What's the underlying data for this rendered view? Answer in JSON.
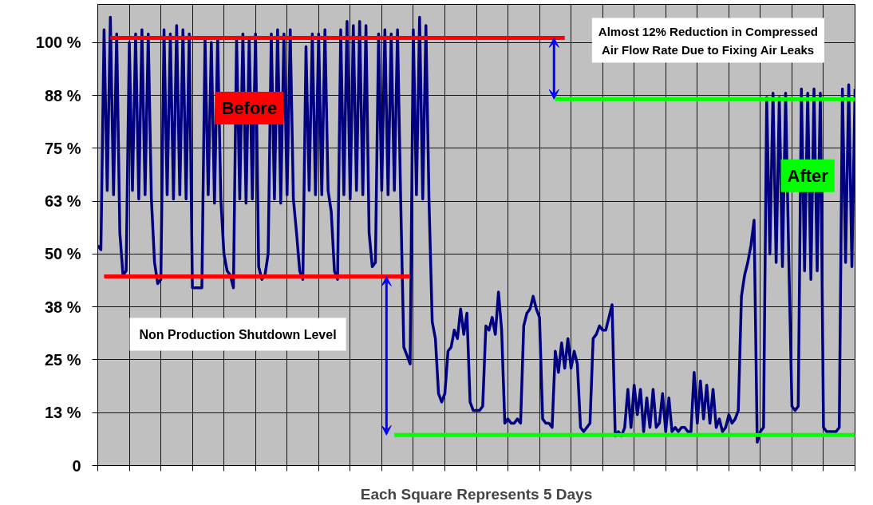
{
  "chart_data": {
    "type": "line",
    "xlabel": "Each Square Represents 5 Days",
    "categories": [
      null,
      null,
      null,
      null,
      null,
      null,
      null,
      null,
      null,
      null,
      null,
      null,
      null,
      null,
      null,
      null,
      null,
      null,
      null,
      null,
      null,
      null,
      null,
      null,
      null,
      null,
      null,
      null,
      null,
      null,
      null,
      null,
      null,
      null,
      null,
      null,
      null,
      null,
      null,
      null,
      null,
      null,
      null,
      null,
      null,
      null,
      null,
      null,
      null,
      null,
      null,
      null,
      null,
      null,
      null,
      null,
      null,
      null,
      null,
      null,
      null,
      null,
      null,
      null,
      null,
      null,
      null,
      null,
      null,
      null,
      null,
      null,
      null,
      null,
      null,
      null,
      null,
      null,
      null,
      null,
      null,
      null,
      null,
      null,
      null,
      null,
      null,
      null,
      null,
      null,
      null,
      null,
      null,
      null,
      null,
      null,
      null,
      null,
      null,
      null,
      null,
      null,
      null,
      null,
      null,
      null,
      null,
      null,
      null,
      null,
      null,
      null,
      null,
      null,
      null,
      null,
      null,
      null,
      null,
      null,
      null,
      null,
      null,
      null,
      null,
      null,
      null,
      null,
      null,
      null,
      null,
      null,
      null,
      null,
      null,
      null,
      null,
      null,
      null,
      null,
      null,
      null,
      null,
      null,
      null,
      null,
      null,
      null,
      null,
      null,
      null,
      null,
      null,
      null,
      null,
      null,
      null,
      null,
      null,
      null,
      null,
      null,
      null,
      null,
      null,
      null,
      null,
      null,
      null,
      null,
      null,
      null,
      null,
      null,
      null,
      null,
      null,
      null,
      null,
      null,
      null,
      null,
      null,
      null,
      null,
      null,
      null,
      null,
      null,
      null,
      null,
      null,
      null,
      null,
      null,
      null,
      null,
      null,
      null,
      null,
      null,
      null,
      null,
      null,
      null,
      null,
      null,
      null,
      null,
      null,
      null,
      null,
      null,
      null,
      null,
      null,
      null,
      null,
      null,
      null,
      null,
      null,
      null,
      null,
      null,
      null,
      null,
      null,
      null,
      null,
      null,
      null,
      null,
      null,
      null,
      null,
      null,
      null,
      null,
      null,
      null
    ],
    "ylim": [
      0,
      109
    ],
    "yticks": [
      {
        "value": 0,
        "label": "0"
      },
      {
        "value": 12.5,
        "label": "13 %"
      },
      {
        "value": 25,
        "label": "25 %"
      },
      {
        "value": 37.5,
        "label": "38 %"
      },
      {
        "value": 50,
        "label": "50 %"
      },
      {
        "value": 62.5,
        "label": "63 %"
      },
      {
        "value": 75,
        "label": "75 %"
      },
      {
        "value": 87.5,
        "label": "88 %"
      },
      {
        "value": 100,
        "label": "100 %"
      }
    ],
    "grid": true,
    "annotations": [
      "Before",
      "After",
      "Almost 12% Reduction in Compressed Air Flow Rate Due to Fixing Air Leaks",
      "Non Production Shutdown Level"
    ],
    "series": [
      {
        "color": "#000080",
        "values": [
          52,
          51,
          103,
          65,
          106,
          64,
          102,
          55,
          45,
          46,
          100,
          65,
          102,
          63,
          103,
          64,
          102,
          63,
          48,
          43,
          44,
          103,
          64,
          102,
          63,
          104,
          64,
          103,
          63,
          102,
          42,
          42,
          42,
          42,
          101,
          64,
          100,
          62,
          101,
          63,
          50,
          46,
          45,
          42,
          101,
          63,
          102,
          62,
          101,
          63,
          102,
          47,
          44,
          45,
          50,
          102,
          63,
          103,
          62,
          102,
          64,
          103,
          63,
          55,
          46,
          44,
          99,
          65,
          102,
          64,
          102,
          64,
          103,
          65,
          60,
          46,
          44,
          103,
          64,
          105,
          63,
          104,
          65,
          105,
          64,
          104,
          55,
          47,
          48,
          102,
          65,
          103,
          64,
          102,
          65,
          103,
          63,
          28,
          26,
          24,
          103,
          64,
          106,
          63,
          104,
          62,
          34,
          30,
          17,
          15,
          17,
          27,
          28,
          32,
          30,
          37,
          31,
          36,
          15,
          13,
          13,
          13,
          14,
          33,
          32,
          35,
          31,
          41,
          32,
          10,
          11,
          10,
          10,
          11,
          10,
          33,
          36,
          37,
          40,
          37,
          35,
          11,
          10,
          10,
          9,
          27,
          22,
          29,
          23,
          30,
          23,
          27,
          24,
          9,
          8,
          9,
          10,
          30,
          31,
          33,
          32,
          32,
          35,
          38,
          7,
          8,
          7,
          9,
          18,
          9,
          19,
          12,
          18,
          8,
          16,
          9,
          18,
          9,
          10,
          17,
          8,
          16,
          8,
          9,
          8,
          9,
          9,
          8,
          8,
          22,
          10,
          20,
          11,
          19,
          10,
          18,
          9,
          11,
          8,
          9,
          12,
          10,
          11,
          13,
          40,
          45,
          48,
          52,
          58,
          5.5,
          8,
          9,
          87,
          50,
          88,
          48,
          87,
          47,
          88,
          49,
          14,
          13,
          14,
          89,
          46,
          88,
          44,
          89,
          46,
          88,
          9,
          8,
          8,
          8,
          8,
          9,
          89,
          48,
          90,
          47,
          89
        ]
      },
      {
        "color": "#ff0000",
        "values": [
          null,
          null,
          null,
          null,
          101.1,
          101.1,
          101.1,
          101.1,
          101.1,
          101.1,
          101.1,
          101.1,
          101.1,
          101.1,
          101.1,
          101.1,
          101.1,
          101.1,
          101.1,
          101.1,
          101.1,
          101.1,
          101.1,
          101.1,
          101.1,
          101.1,
          101.1,
          101.1,
          101.1,
          101.1,
          101.1,
          101.1,
          101.1,
          101.1,
          101.1,
          101.1,
          101.1,
          101.1,
          101.1,
          101.1,
          101.1,
          101.1,
          101.1,
          101.1,
          101.1,
          101.1,
          101.1,
          101.1,
          101.1,
          101.1,
          101.1,
          101.1,
          101.1,
          101.1,
          101.1,
          101.1,
          101.1,
          101.1,
          101.1,
          101.1,
          101.1,
          101.1,
          101.1,
          101.1,
          101.1,
          101.1,
          101.1,
          101.1,
          101.1,
          101.1,
          101.1,
          101.1,
          101.1,
          101.1,
          101.1,
          101.1,
          101.1,
          101.1,
          101.1,
          101.1,
          101.1,
          101.1,
          101.1,
          101.1,
          101.1,
          101.1,
          101.1,
          101.1,
          101.1,
          101.1,
          101.1,
          101.1,
          101.1,
          101.1,
          101.1,
          101.1,
          101.1,
          101.1,
          101.1,
          101.1,
          101.1,
          101.1,
          101.1,
          101.1,
          101.1,
          101.1,
          101.1,
          101.1,
          101.1,
          101.1,
          101.1,
          101.1,
          101.1,
          101.1,
          101.1,
          101.1,
          101.1,
          101.1,
          101.1,
          101.1,
          101.1,
          101.1,
          101.1,
          101.1,
          101.1,
          101.1,
          101.1,
          101.1,
          101.1,
          101.1,
          101.1,
          101.1,
          101.1,
          101.1,
          101.1,
          101.1,
          101.1,
          101.1,
          101.1,
          101.1,
          101.1,
          101.1,
          101.1,
          101.1,
          101.1,
          101.1,
          101.1,
          101.1,
          101.1,
          null,
          null,
          null,
          null,
          null,
          null,
          null,
          null,
          null,
          null,
          null,
          null,
          null,
          null,
          null,
          null,
          null,
          null,
          null,
          null,
          null,
          null,
          null,
          null,
          null,
          null,
          null,
          null,
          null,
          null,
          null,
          null,
          null,
          null,
          null,
          null,
          null,
          null,
          null,
          null,
          null,
          null,
          null,
          null,
          null,
          null,
          null,
          null,
          null,
          null,
          null,
          null,
          null,
          null,
          null,
          null,
          null,
          null,
          null,
          null,
          null,
          null,
          null,
          null,
          null,
          null,
          null,
          null,
          null,
          null,
          null,
          null,
          null,
          null,
          null,
          null,
          null,
          null,
          null,
          null,
          null,
          null,
          null,
          null,
          null,
          null,
          null,
          null,
          null,
          null,
          null,
          null
        ]
      },
      {
        "color": "#00ff00",
        "values": [
          null,
          null,
          null,
          null,
          null,
          null,
          null,
          null,
          null,
          null,
          null,
          null,
          null,
          null,
          null,
          null,
          null,
          null,
          null,
          null,
          null,
          null,
          null,
          null,
          null,
          null,
          null,
          null,
          null,
          null,
          null,
          null,
          null,
          null,
          null,
          null,
          null,
          null,
          null,
          null,
          null,
          null,
          null,
          null,
          null,
          null,
          null,
          null,
          null,
          null,
          null,
          null,
          null,
          null,
          null,
          null,
          null,
          null,
          null,
          null,
          null,
          null,
          null,
          null,
          null,
          null,
          null,
          null,
          null,
          null,
          null,
          null,
          null,
          null,
          null,
          null,
          null,
          null,
          null,
          null,
          null,
          null,
          null,
          null,
          null,
          null,
          null,
          null,
          null,
          null,
          null,
          null,
          null,
          null,
          null,
          null,
          null,
          null,
          null,
          null,
          null,
          null,
          null,
          null,
          null,
          null,
          null,
          null,
          null,
          null,
          null,
          null,
          null,
          null,
          null,
          null,
          null,
          null,
          null,
          null,
          null,
          null,
          null,
          null,
          null,
          null,
          null,
          null,
          null,
          null,
          null,
          null,
          null,
          null,
          null,
          null,
          null,
          null,
          null,
          null,
          null,
          null,
          null,
          null,
          null,
          86.6,
          86.6,
          86.6,
          86.6,
          86.6,
          86.6,
          86.6,
          86.6,
          86.6,
          86.6,
          86.6,
          86.6,
          86.6,
          86.6,
          86.6,
          86.6,
          86.6,
          86.6,
          86.6,
          86.6,
          86.6,
          86.6,
          86.6,
          86.6,
          86.6,
          86.6,
          86.6,
          86.6,
          86.6,
          86.6,
          86.6,
          86.6,
          86.6,
          86.6,
          86.6,
          86.6,
          86.6,
          86.6,
          86.6,
          86.6,
          86.6,
          86.6,
          86.6,
          86.6,
          86.6,
          86.6,
          86.6,
          86.6,
          86.6,
          86.6,
          86.6,
          86.6,
          86.6,
          86.6,
          86.6,
          86.6,
          86.6,
          86.6,
          86.6,
          86.6,
          86.6,
          86.6,
          86.6,
          86.6,
          86.6,
          86.6,
          86.6,
          86.6,
          86.6,
          86.6,
          86.6,
          86.6,
          86.6,
          86.6,
          86.6,
          86.6,
          86.6,
          86.6,
          86.6,
          86.6,
          86.6,
          86.6,
          86.6,
          86.6,
          86.6,
          86.6,
          86.6,
          86.6,
          86.6,
          86.6,
          86.6,
          86.6,
          86.6,
          86.6,
          86.6,
          86.6
        ]
      },
      {
        "color": "#ff0000",
        "values": [
          null,
          null,
          44.7,
          44.7,
          44.7,
          44.7,
          44.7,
          44.7,
          44.7,
          44.7,
          44.7,
          44.7,
          44.7,
          44.7,
          44.7,
          44.7,
          44.7,
          44.7,
          44.7,
          44.7,
          44.7,
          44.7,
          44.7,
          44.7,
          44.7,
          44.7,
          44.7,
          44.7,
          44.7,
          44.7,
          44.7,
          44.7,
          44.7,
          44.7,
          44.7,
          44.7,
          44.7,
          44.7,
          44.7,
          44.7,
          44.7,
          44.7,
          44.7,
          44.7,
          44.7,
          44.7,
          44.7,
          44.7,
          44.7,
          44.7,
          44.7,
          44.7,
          44.7,
          44.7,
          44.7,
          44.7,
          44.7,
          44.7,
          44.7,
          44.7,
          44.7,
          44.7,
          44.7,
          44.7,
          44.7,
          44.7,
          44.7,
          44.7,
          44.7,
          44.7,
          44.7,
          44.7,
          44.7,
          44.7,
          44.7,
          44.7,
          44.7,
          44.7,
          44.7,
          44.7,
          44.7,
          44.7,
          44.7,
          44.7,
          44.7,
          44.7,
          44.7,
          44.7,
          44.7,
          44.7,
          44.7,
          44.7,
          44.7,
          44.7,
          44.7,
          44.7,
          44.7,
          44.7,
          44.7,
          44.7,
          null,
          null,
          null,
          null,
          null,
          null,
          null,
          null,
          null,
          null,
          null,
          null,
          null,
          null,
          null,
          null,
          null,
          null,
          null,
          null,
          null,
          null,
          null,
          null,
          null,
          null,
          null,
          null,
          null,
          null,
          null,
          null,
          null,
          null,
          null,
          null,
          null,
          null,
          null,
          null,
          null,
          null,
          null,
          null,
          null,
          null,
          null,
          null,
          null,
          null,
          null,
          null,
          null,
          null,
          null,
          null,
          null,
          null,
          null,
          null,
          null,
          null,
          null,
          null,
          null,
          null,
          null,
          null,
          null,
          null,
          null,
          null,
          null,
          null,
          null,
          null,
          null,
          null,
          null,
          null,
          null,
          null,
          null,
          null,
          null,
          null,
          null,
          null,
          null,
          null,
          null,
          null,
          null,
          null,
          null,
          null,
          null,
          null,
          null,
          null,
          null,
          null,
          null,
          null,
          null,
          null,
          null,
          null,
          null,
          null,
          null,
          null,
          null,
          null,
          null,
          null,
          null,
          null,
          null,
          null,
          null,
          null,
          null,
          null,
          null,
          null,
          null,
          null,
          null,
          null,
          null,
          null,
          null,
          null,
          null,
          null,
          null,
          null,
          null,
          null,
          null
        ]
      },
      {
        "color": "#00ff00",
        "values": [
          null,
          null,
          null,
          null,
          null,
          null,
          null,
          null,
          null,
          null,
          null,
          null,
          null,
          null,
          null,
          null,
          null,
          null,
          null,
          null,
          null,
          null,
          null,
          null,
          null,
          null,
          null,
          null,
          null,
          null,
          null,
          null,
          null,
          null,
          null,
          null,
          null,
          null,
          null,
          null,
          null,
          null,
          null,
          null,
          null,
          null,
          null,
          null,
          null,
          null,
          null,
          null,
          null,
          null,
          null,
          null,
          null,
          null,
          null,
          null,
          null,
          null,
          null,
          null,
          null,
          null,
          null,
          null,
          null,
          null,
          null,
          null,
          null,
          null,
          null,
          null,
          null,
          null,
          null,
          null,
          null,
          null,
          null,
          null,
          null,
          null,
          null,
          null,
          null,
          null,
          null,
          null,
          null,
          null,
          7.2,
          7.2,
          7.2,
          7.2,
          7.2,
          7.2,
          7.2,
          7.2,
          7.2,
          7.2,
          7.2,
          7.2,
          7.2,
          7.2,
          7.2,
          7.2,
          7.2,
          7.2,
          7.2,
          7.2,
          7.2,
          7.2,
          7.2,
          7.2,
          7.2,
          7.2,
          7.2,
          7.2,
          7.2,
          7.2,
          7.2,
          7.2,
          7.2,
          7.2,
          7.2,
          7.2,
          7.2,
          7.2,
          7.2,
          7.2,
          7.2,
          7.2,
          7.2,
          7.2,
          7.2,
          7.2,
          7.2,
          7.2,
          7.2,
          7.2,
          7.2,
          7.2,
          7.2,
          7.2,
          7.2,
          7.2,
          7.2,
          7.2,
          7.2,
          7.2,
          7.2,
          7.2,
          7.2,
          7.2,
          7.2,
          7.2,
          7.2,
          7.2,
          7.2,
          7.2,
          7.2,
          7.2,
          7.2,
          7.2,
          7.2,
          7.2,
          7.2,
          7.2,
          7.2,
          7.2,
          7.2,
          7.2,
          7.2,
          7.2,
          7.2,
          7.2,
          7.2,
          7.2,
          7.2,
          7.2,
          7.2,
          7.2,
          7.2,
          7.2,
          7.2,
          7.2,
          7.2,
          7.2,
          7.2,
          7.2,
          7.2,
          7.2,
          7.2,
          7.2,
          7.2,
          7.2,
          7.2,
          7.2,
          7.2,
          7.2,
          7.2,
          7.2,
          7.2,
          7.2,
          7.2,
          7.2,
          7.2,
          7.2,
          7.2,
          7.2,
          7.2,
          7.2,
          7.2,
          7.2,
          7.2,
          7.2,
          7.2,
          7.2,
          7.2,
          7.2,
          7.2,
          7.2,
          7.2,
          7.2,
          7.2,
          7.2,
          7.2,
          7.2,
          7.2,
          7.2,
          7.2,
          7.2,
          7.2,
          7.2,
          7.2,
          7.2,
          7.2
        ]
      }
    ]
  }
}
